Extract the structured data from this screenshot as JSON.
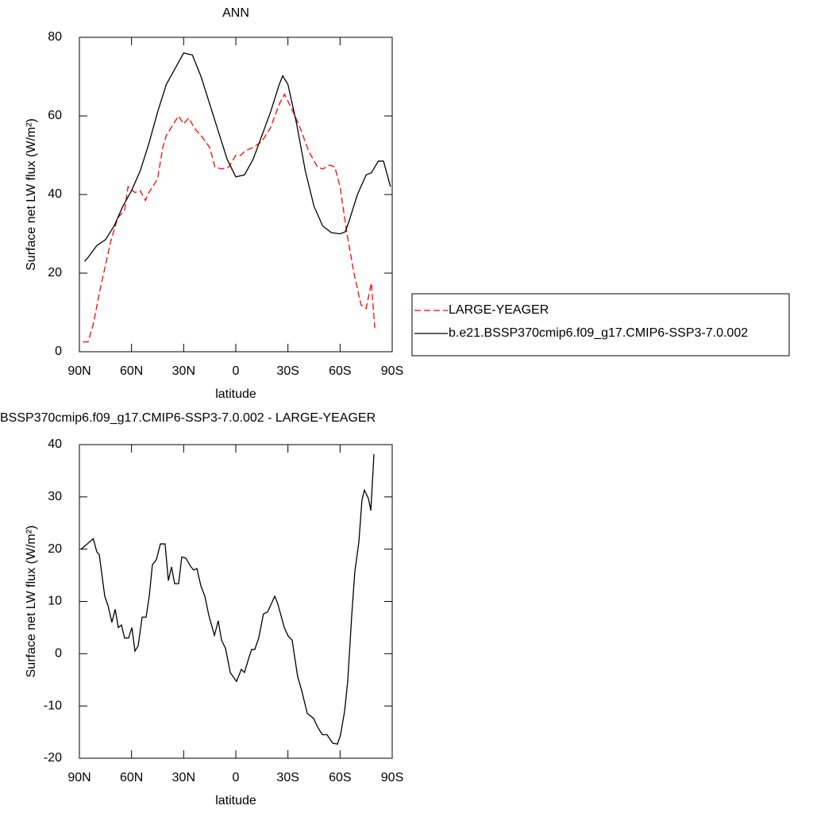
{
  "chart_data": [
    {
      "type": "line",
      "title": "ANN",
      "xlabel": "latitude",
      "ylabel": "Surface net LW flux (W/m²)",
      "xlim": [
        90,
        -90
      ],
      "xticks": [
        {
          "value": 90,
          "label": "90N"
        },
        {
          "value": 60,
          "label": "60N"
        },
        {
          "value": 30,
          "label": "30N"
        },
        0,
        {
          "value": -30,
          "label": "30S"
        },
        {
          "value": -60,
          "label": "60S"
        },
        {
          "value": -90,
          "label": "90S"
        }
      ],
      "ylim": [
        0,
        80
      ],
      "yticks": [
        0,
        20,
        40,
        60,
        80
      ],
      "legend": "right",
      "series": [
        {
          "name": "LARGE-YEAGER",
          "color": "#ff0000",
          "style": "dashed",
          "x": [
            88,
            85,
            82,
            78,
            75,
            72,
            68,
            64,
            62,
            58,
            55,
            52,
            50,
            45,
            42,
            40,
            33,
            30,
            27,
            24,
            20,
            15,
            12,
            8,
            4,
            0,
            -3,
            -5,
            -10,
            -15,
            -20,
            -25,
            -28,
            -32,
            -37,
            -42,
            -47,
            -50,
            -54,
            -57,
            -60,
            -64,
            -68,
            -72,
            -75,
            -78,
            -80
          ],
          "values": [
            2.5,
            2.5,
            7,
            16,
            22,
            28,
            34,
            36,
            42,
            40.5,
            41,
            38.5,
            40.5,
            44,
            52,
            55,
            60,
            58,
            59.5,
            57,
            55,
            52,
            47,
            46.5,
            47,
            50,
            50,
            51,
            52,
            53.5,
            57,
            63,
            65.5,
            62,
            57,
            51,
            47,
            46.5,
            47.5,
            47,
            42,
            30,
            20,
            12,
            11,
            17.5,
            6
          ]
        },
        {
          "name": "b.e21.BSSP370cmip6.f09_g17.CMIP6-SSP3-7.0.002",
          "color": "#000000",
          "style": "solid",
          "x": [
            87,
            85,
            80,
            75,
            70,
            65,
            60,
            55,
            50,
            45,
            40,
            35,
            30,
            25,
            20,
            15,
            10,
            5,
            0,
            -5,
            -10,
            -15,
            -20,
            -25,
            -27,
            -30,
            -35,
            -40,
            -45,
            -50,
            -55,
            -60,
            -63,
            -65,
            -70,
            -75,
            -78,
            -82,
            -85,
            -89
          ],
          "values": [
            23,
            24,
            27,
            28.5,
            32,
            37,
            41,
            46,
            53,
            61,
            68,
            72,
            76,
            75.5,
            70,
            63,
            56,
            49,
            44.5,
            45,
            49,
            55,
            61,
            68,
            70.2,
            68,
            58,
            46,
            37,
            32,
            30.3,
            30,
            30.5,
            33,
            40,
            45,
            45.5,
            48.5,
            48.5,
            42
          ]
        }
      ]
    },
    {
      "type": "line",
      "title": "BSSP370cmip6.f09_g17.CMIP6-SSP3-7.0.002 - LARGE-YEAGER",
      "xlabel": "latitude",
      "ylabel": "Surface net LW flux (W/m²)",
      "xlim": [
        90,
        -90
      ],
      "xticks": [
        {
          "value": 90,
          "label": "90N"
        },
        {
          "value": 60,
          "label": "60N"
        },
        {
          "value": 30,
          "label": "30N"
        },
        0,
        {
          "value": -30,
          "label": "30S"
        },
        {
          "value": -60,
          "label": "60S"
        },
        {
          "value": -90,
          "label": "90S"
        }
      ],
      "ylim": [
        -20,
        40
      ],
      "yticks": [
        -20,
        -10,
        0,
        10,
        20,
        30,
        40
      ],
      "series": [
        {
          "color": "#000000",
          "style": "solid",
          "x": [
            89,
            82,
            80,
            78.6,
            75.4,
            73.6,
            71.3,
            69.4,
            67.6,
            65.8,
            64,
            61.7,
            59.8,
            58,
            56.2,
            53.9,
            51.6,
            49.8,
            48,
            45.7,
            43.4,
            40.7,
            38.8,
            37,
            35.2,
            32.9,
            31.1,
            28.8,
            26,
            24.2,
            22.4,
            20.1,
            17.8,
            15.5,
            12.3,
            10.1,
            8.2,
            5.9,
            3.2,
            -0.4,
            -3.2,
            -5,
            -7.3,
            -9.1,
            -10.9,
            -13.2,
            -15.9,
            -18.3,
            -20.5,
            -22.4,
            -24.2,
            -27.9,
            -30.1,
            -32.4,
            -35.6,
            -37.9,
            -41.1,
            -44.8,
            -47,
            -49.8,
            -52.5,
            -55.7,
            -58.5,
            -60.3,
            -62.6,
            -64.4,
            -66.7,
            -68.5,
            -70.8,
            -72.6,
            -74,
            -76.3,
            -77.7,
            -79.5
          ],
          "values": [
            20,
            22,
            19.5,
            19,
            11,
            9.3,
            6,
            8.5,
            5,
            5.5,
            3,
            3,
            5,
            0.5,
            1.5,
            7,
            7,
            11,
            17,
            18,
            21,
            21,
            14,
            16.6,
            13.4,
            13.4,
            18.5,
            18.3,
            16.7,
            16,
            16.3,
            13,
            11,
            7.3,
            3.5,
            6.3,
            2.6,
            1,
            -3.6,
            -5.3,
            -3,
            -3.6,
            -1,
            0.8,
            0.8,
            3,
            7.6,
            8,
            9.6,
            11,
            9.5,
            5,
            3.4,
            2.6,
            -4.4,
            -7,
            -11.4,
            -12.4,
            -14,
            -15.5,
            -15.5,
            -17.1,
            -17.3,
            -15.5,
            -11,
            -5.3,
            7.3,
            15.7,
            21.3,
            29.4,
            31.3,
            29.7,
            27.4,
            38.2
          ]
        }
      ]
    }
  ]
}
